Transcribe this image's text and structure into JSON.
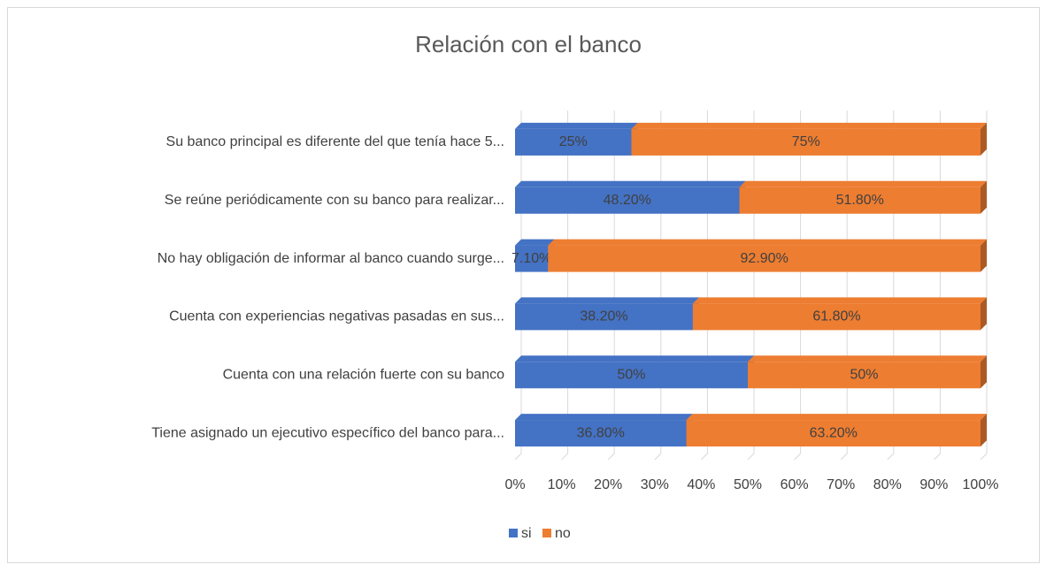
{
  "chart_data": {
    "type": "bar",
    "orientation": "horizontal",
    "stacked": true,
    "three_d": true,
    "title": "Relación con el banco",
    "categories": [
      "Su banco principal es diferente del que tenía hace 5...",
      "Se reúne periódicamente con su banco para realizar...",
      "No hay obligación de informar al banco cuando surge...",
      "Cuenta con experiencias negativas pasadas en sus...",
      "Cuenta con una relación fuerte con su banco",
      "Tiene asignado un ejecutivo específico del banco para..."
    ],
    "series": [
      {
        "name": "si",
        "color": "#4472c4",
        "values": [
          25,
          48.2,
          7.1,
          38.2,
          50,
          36.8
        ],
        "value_labels": [
          "25%",
          "48.20%",
          "7.10%",
          "38.20%",
          "50%",
          "36.80%"
        ]
      },
      {
        "name": "no",
        "color": "#ed7d31",
        "values": [
          75,
          51.8,
          92.9,
          61.8,
          50,
          63.2
        ],
        "value_labels": [
          "75%",
          "51.80%",
          "92.90%",
          "61.80%",
          "50%",
          "63.20%"
        ]
      }
    ],
    "xlim": [
      0,
      100
    ],
    "xticks": [
      {
        "value": 0,
        "label": "0%"
      },
      {
        "value": 10,
        "label": "10%"
      },
      {
        "value": 20,
        "label": "20%"
      },
      {
        "value": 30,
        "label": "30%"
      },
      {
        "value": 40,
        "label": "40%"
      },
      {
        "value": 50,
        "label": "50%"
      },
      {
        "value": 60,
        "label": "60%"
      },
      {
        "value": 70,
        "label": "70%"
      },
      {
        "value": 80,
        "label": "80%"
      },
      {
        "value": 90,
        "label": "90%"
      },
      {
        "value": 100,
        "label": "100%"
      }
    ],
    "grid": true,
    "legend": "bottom"
  }
}
